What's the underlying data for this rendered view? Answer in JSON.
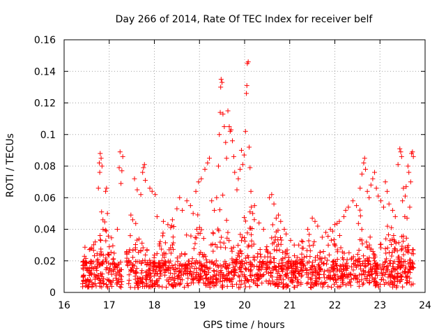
{
  "chart_data": {
    "type": "scatter",
    "title": "Day 266 of 2014, Rate Of TEC Index for receiver belf",
    "xlabel": "GPS time / hours",
    "ylabel": "ROTI / TECUs",
    "xlim": [
      16,
      24
    ],
    "ylim": [
      0,
      0.16
    ],
    "x_ticks": [
      "16",
      "17",
      "18",
      "19",
      "20",
      "21",
      "22",
      "23",
      "24"
    ],
    "y_ticks": [
      "0",
      "0.02",
      "0.04",
      "0.06",
      "0.08",
      "0.1",
      "0.12",
      "0.14",
      "0.16"
    ],
    "grid": true,
    "marker": "+",
    "color": "#ff0000",
    "series": [
      {
        "name": "ROTI",
        "points": [
          [
            16.8,
            0.088
          ],
          [
            16.82,
            0.085
          ],
          [
            16.78,
            0.082
          ],
          [
            16.84,
            0.08
          ],
          [
            16.79,
            0.076
          ],
          [
            16.76,
            0.066
          ],
          [
            16.94,
            0.066
          ],
          [
            16.92,
            0.064
          ],
          [
            16.96,
            0.05
          ],
          [
            16.83,
            0.051
          ],
          [
            16.86,
            0.046
          ],
          [
            17.24,
            0.089
          ],
          [
            17.3,
            0.086
          ],
          [
            17.22,
            0.079
          ],
          [
            17.28,
            0.077
          ],
          [
            17.26,
            0.069
          ],
          [
            17.18,
            0.04
          ],
          [
            17.48,
            0.049
          ],
          [
            17.52,
            0.046
          ],
          [
            17.56,
            0.072
          ],
          [
            17.62,
            0.065
          ],
          [
            17.7,
            0.062
          ],
          [
            17.76,
            0.079
          ],
          [
            17.78,
            0.081
          ],
          [
            17.74,
            0.076
          ],
          [
            17.8,
            0.071
          ],
          [
            17.9,
            0.066
          ],
          [
            17.95,
            0.064
          ],
          [
            18.02,
            0.062
          ],
          [
            18.06,
            0.048
          ],
          [
            18.2,
            0.045
          ],
          [
            18.3,
            0.043
          ],
          [
            18.4,
            0.046
          ],
          [
            18.5,
            0.053
          ],
          [
            18.56,
            0.06
          ],
          [
            18.62,
            0.052
          ],
          [
            18.72,
            0.058
          ],
          [
            18.8,
            0.055
          ],
          [
            18.86,
            0.05
          ],
          [
            18.92,
            0.064
          ],
          [
            18.98,
            0.07
          ],
          [
            19.04,
            0.072
          ],
          [
            19.12,
            0.078
          ],
          [
            19.18,
            0.082
          ],
          [
            19.22,
            0.085
          ],
          [
            19.27,
            0.058
          ],
          [
            19.33,
            0.052
          ],
          [
            19.38,
            0.06
          ],
          [
            19.42,
            0.08
          ],
          [
            19.44,
            0.1
          ],
          [
            19.46,
            0.114
          ],
          [
            19.47,
            0.13
          ],
          [
            19.48,
            0.135
          ],
          [
            19.5,
            0.133
          ],
          [
            19.52,
            0.113
          ],
          [
            19.55,
            0.105
          ],
          [
            19.58,
            0.095
          ],
          [
            19.6,
            0.085
          ],
          [
            19.63,
            0.115
          ],
          [
            19.66,
            0.105
          ],
          [
            19.68,
            0.102
          ],
          [
            19.7,
            0.103
          ],
          [
            19.73,
            0.096
          ],
          [
            19.76,
            0.086
          ],
          [
            19.78,
            0.076
          ],
          [
            19.83,
            0.065
          ],
          [
            19.86,
            0.072
          ],
          [
            19.9,
            0.078
          ],
          [
            19.93,
            0.09
          ],
          [
            19.96,
            0.081
          ],
          [
            19.99,
            0.087
          ],
          [
            20.02,
            0.102
          ],
          [
            20.04,
            0.126
          ],
          [
            20.05,
            0.131
          ],
          [
            20.06,
            0.145
          ],
          [
            20.08,
            0.146
          ],
          [
            20.1,
            0.092
          ],
          [
            20.12,
            0.079
          ],
          [
            20.14,
            0.064
          ],
          [
            20.18,
            0.05
          ],
          [
            20.22,
            0.055
          ],
          [
            20.32,
            0.044
          ],
          [
            20.42,
            0.04
          ],
          [
            20.55,
            0.06
          ],
          [
            20.6,
            0.062
          ],
          [
            20.65,
            0.056
          ],
          [
            20.7,
            0.047
          ],
          [
            20.75,
            0.049
          ],
          [
            20.8,
            0.045
          ],
          [
            20.88,
            0.04
          ],
          [
            20.92,
            0.037
          ],
          [
            21.02,
            0.033
          ],
          [
            21.1,
            0.03
          ],
          [
            21.2,
            0.03
          ],
          [
            21.3,
            0.028
          ],
          [
            21.4,
            0.04
          ],
          [
            21.5,
            0.047
          ],
          [
            21.56,
            0.045
          ],
          [
            21.62,
            0.042
          ],
          [
            21.72,
            0.035
          ],
          [
            21.8,
            0.038
          ],
          [
            21.9,
            0.04
          ],
          [
            22.0,
            0.043
          ],
          [
            22.1,
            0.045
          ],
          [
            22.2,
            0.048
          ],
          [
            22.24,
            0.052
          ],
          [
            22.3,
            0.054
          ],
          [
            22.4,
            0.058
          ],
          [
            22.48,
            0.055
          ],
          [
            22.56,
            0.066
          ],
          [
            22.6,
            0.075
          ],
          [
            22.64,
            0.082
          ],
          [
            22.66,
            0.085
          ],
          [
            22.68,
            0.078
          ],
          [
            22.72,
            0.064
          ],
          [
            22.76,
            0.06
          ],
          [
            22.8,
            0.068
          ],
          [
            22.84,
            0.072
          ],
          [
            22.88,
            0.076
          ],
          [
            22.92,
            0.066
          ],
          [
            22.96,
            0.061
          ],
          [
            23.02,
            0.058
          ],
          [
            23.08,
            0.054
          ],
          [
            23.12,
            0.07
          ],
          [
            23.16,
            0.064
          ],
          [
            23.2,
            0.056
          ],
          [
            23.28,
            0.052
          ],
          [
            23.34,
            0.048
          ],
          [
            23.4,
            0.081
          ],
          [
            23.44,
            0.091
          ],
          [
            23.46,
            0.089
          ],
          [
            23.48,
            0.086
          ],
          [
            23.52,
            0.066
          ],
          [
            23.56,
            0.061
          ],
          [
            23.58,
            0.067
          ],
          [
            23.62,
            0.08
          ],
          [
            23.64,
            0.076
          ],
          [
            23.68,
            0.07
          ],
          [
            23.7,
            0.088
          ],
          [
            23.72,
            0.089
          ],
          [
            23.74,
            0.086
          ],
          [
            23.66,
            0.054
          ],
          [
            23.6,
            0.047
          ],
          [
            23.55,
            0.048
          ],
          [
            23.5,
            0.058
          ]
        ],
        "noise_floor": {
          "x_range": [
            16.4,
            23.75
          ],
          "gaps": [
            [
              17.28,
              17.38
            ],
            [
              19.96,
              19.99
            ]
          ],
          "baseline": [
            0.003,
            0.02
          ],
          "bursts": [
            {
              "center": 16.5,
              "peak": 0.015
            },
            {
              "center": 16.9,
              "peak": 0.036
            },
            {
              "center": 17.6,
              "peak": 0.042
            },
            {
              "center": 18.3,
              "peak": 0.036
            },
            {
              "center": 18.9,
              "peak": 0.044
            },
            {
              "center": 19.5,
              "peak": 0.05
            },
            {
              "center": 20.1,
              "peak": 0.046
            },
            {
              "center": 20.7,
              "peak": 0.034
            },
            {
              "center": 21.4,
              "peak": 0.032
            },
            {
              "center": 22.0,
              "peak": 0.034
            },
            {
              "center": 22.6,
              "peak": 0.038
            },
            {
              "center": 23.2,
              "peak": 0.036
            },
            {
              "center": 23.6,
              "peak": 0.032
            }
          ],
          "point_count": 1600
        }
      }
    ]
  }
}
